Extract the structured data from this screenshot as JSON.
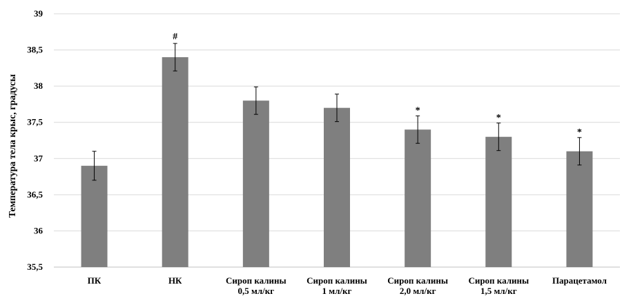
{
  "chart_data": {
    "type": "bar",
    "title": "",
    "xlabel": "",
    "ylabel": "Температура тела крыс, градусы",
    "categories": [
      [
        "ПК"
      ],
      [
        "НК"
      ],
      [
        "Сироп калины",
        "0,5 мл/кг"
      ],
      [
        "Сироп калины",
        "1 мл/кг"
      ],
      [
        "Сироп калины",
        "2,0 мл/кг"
      ],
      [
        "Сироп калины",
        "1,5 мл/кг"
      ],
      [
        "Парацетамол"
      ]
    ],
    "values": [
      36.9,
      38.4,
      37.8,
      37.7,
      37.4,
      37.3,
      37.1
    ],
    "errors": [
      0.2,
      0.19,
      0.19,
      0.19,
      0.19,
      0.19,
      0.19
    ],
    "annotations": [
      "",
      "#",
      "",
      "",
      "*",
      "*",
      "*"
    ],
    "ylim": [
      35.5,
      39
    ],
    "yticks": [
      "35,5",
      "36",
      "36,5",
      "37",
      "37,5",
      "38",
      "38,5",
      "39"
    ],
    "ytick_values": [
      35.5,
      36,
      36.5,
      37,
      37.5,
      38,
      38.5,
      39
    ],
    "grid": true,
    "colors": {
      "bar": "#7f7f7f",
      "grid": "#d9d9d9",
      "axis": "#bfbfbf",
      "text": "#000000"
    }
  }
}
